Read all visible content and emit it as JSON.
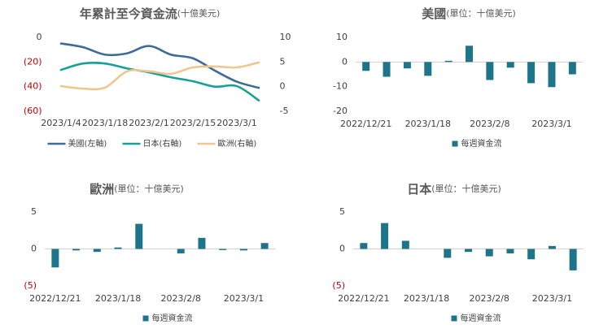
{
  "chart_data": [
    {
      "type": "line",
      "title": "年累計至今資金流",
      "title_unit": "(十億美元)",
      "categories": [
        "2023/1/4",
        null,
        "2023/1/18",
        null,
        "2023/2/1",
        null,
        "2023/2/15",
        null,
        "2023/3/1",
        null
      ],
      "series": [
        {
          "name": "美國(左軸)",
          "color": "#3e6b97",
          "values": [
            -5,
            -8,
            -14,
            -13,
            -7,
            -14,
            -17,
            -27,
            -36,
            -41
          ]
        },
        {
          "name": "日本(右軸)",
          "color": "#17a09a",
          "axis": "y2",
          "values": [
            3.4,
            4.7,
            4.7,
            3.7,
            2.9,
            1.9,
            1.1,
            0,
            0.1,
            -2.8
          ]
        },
        {
          "name": "歐洲(右軸)",
          "color": "#f0c58f",
          "axis": "y2",
          "values": [
            0.1,
            -0.4,
            -0.2,
            3.1,
            3.1,
            2.6,
            3.9,
            4.1,
            3.9,
            4.9
          ]
        }
      ],
      "ylim": [
        -60,
        0
      ],
      "yticks": [
        0,
        {
          "value": -20,
          "label": "(20)"
        },
        {
          "value": -40,
          "label": "(40)"
        },
        {
          "value": -60,
          "label": "(60)"
        }
      ],
      "y2lim": [
        -5,
        10
      ],
      "y2ticks": [
        10,
        5,
        0,
        -5
      ],
      "negative_tick_color": "#c00000"
    },
    {
      "type": "bar",
      "title": "美國",
      "title_unit": "(單位：十億美元)",
      "categories": [
        "2022/12/21",
        null,
        null,
        "2023/1/18",
        null,
        null,
        "2023/2/8",
        null,
        null,
        "2023/3/1",
        null
      ],
      "series": [
        {
          "name": "每週資金流",
          "color": "#1e7589",
          "values": [
            -3.6,
            -6,
            -2.6,
            -5.6,
            0.5,
            6.6,
            -7.3,
            -2.3,
            -8.6,
            -10.2,
            -5
          ]
        }
      ],
      "ylim": [
        -20,
        10
      ],
      "yticks": [
        10,
        0,
        -10,
        -20
      ]
    },
    {
      "type": "bar",
      "title": "歐洲",
      "title_unit": "(單位：十億美元)",
      "categories": [
        "2022/12/21",
        null,
        null,
        "2023/1/18",
        null,
        null,
        "2023/2/8",
        null,
        null,
        "2023/3/1",
        null
      ],
      "series": [
        {
          "name": "每週資金流",
          "color": "#1e7589",
          "values": [
            -2.5,
            -0.2,
            -0.4,
            0.2,
            3.4,
            0,
            -0.6,
            1.5,
            -0.15,
            -0.2,
            0.8
          ]
        }
      ],
      "ylim": [
        -5,
        5
      ],
      "yticks": [
        5,
        0,
        {
          "value": -5,
          "label": "(5)"
        }
      ],
      "negative_tick_color": "#c00000"
    },
    {
      "type": "bar",
      "title": "日本",
      "title_unit": "(單位：十億美元)",
      "categories": [
        "2022/12/21",
        null,
        null,
        "2023/1/18",
        null,
        null,
        "2023/2/8",
        null,
        null,
        "2023/3/1",
        null
      ],
      "series": [
        {
          "name": "每週資金流",
          "color": "#1e7589",
          "values": [
            0.8,
            3.5,
            1.1,
            0,
            -1.2,
            -0.4,
            -1.0,
            -0.6,
            -1.4,
            0.4,
            -2.9
          ]
        }
      ],
      "ylim": [
        -5,
        5
      ],
      "yticks": [
        5,
        0,
        {
          "value": -5,
          "label": "(5)"
        }
      ],
      "negative_tick_color": "#c00000"
    }
  ]
}
